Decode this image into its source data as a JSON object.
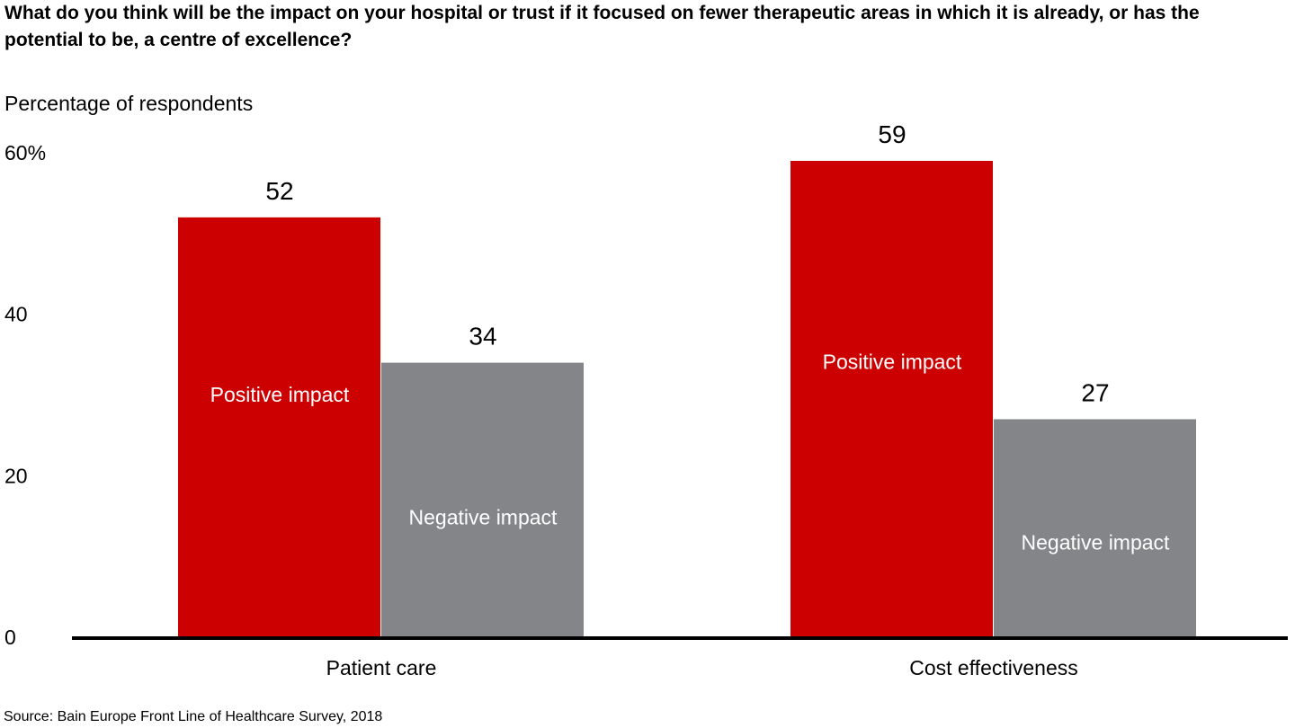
{
  "header": {
    "title": "What do you think will be the impact on your hospital or trust if it focused on fewer therapeutic areas in which it is already, or has the potential to be, a centre of excellence?"
  },
  "footer": {
    "source": "Source: Bain Europe Front Line of Healthcare Survey, 2018"
  },
  "colors": {
    "positive": "#cc0000",
    "negative": "#848589",
    "axis": "#000000"
  },
  "chart_data": {
    "type": "bar",
    "title": "What do you think will be the impact on your hospital or trust if it focused on fewer therapeutic areas in which it is already, or has the potential to be, a centre of excellence?",
    "ylabel": "Percentage of respondents",
    "xlabel": "",
    "categories": [
      "Patient care",
      "Cost effectiveness"
    ],
    "series": [
      {
        "name": "Positive impact",
        "values": [
          52,
          59
        ]
      },
      {
        "name": "Negative impact",
        "values": [
          34,
          27
        ]
      }
    ],
    "ylim": [
      0,
      60
    ],
    "yticks": [
      "0",
      "20",
      "40",
      "60%"
    ],
    "ytick_values": [
      0,
      20,
      40,
      60
    ],
    "grid": false,
    "legend": "inside bars"
  }
}
